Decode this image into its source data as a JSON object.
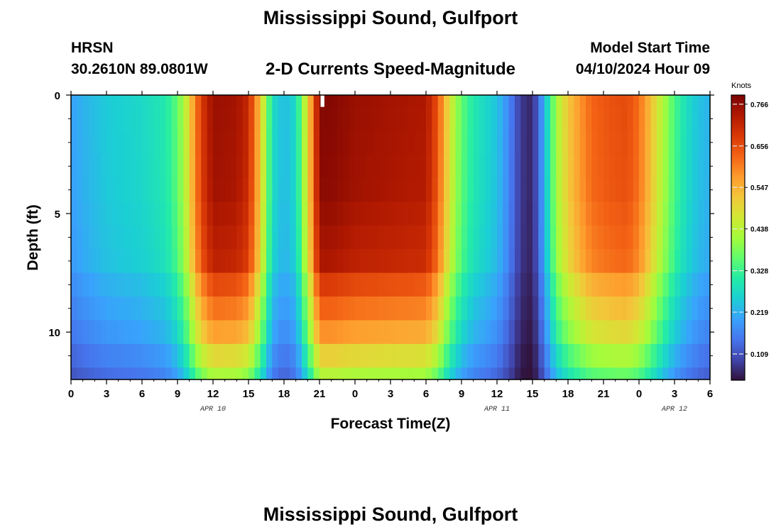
{
  "header": {
    "title": "Mississippi Sound, Gulfport",
    "station_code": "HRSN",
    "coordinates": "30.2610N  89.0801W",
    "subtitle": "2-D Currents Speed-Magnitude",
    "model_start_label": "Model Start Time",
    "model_start_value": "04/10/2024 Hour 09"
  },
  "footer": {
    "title_repeat": "Mississippi Sound, Gulfport"
  },
  "colors": {
    "stops": [
      "#30123b",
      "#4145ab",
      "#4675ed",
      "#39a2fc",
      "#1bcfd4",
      "#24eca6",
      "#61fc6c",
      "#a4fc3b",
      "#d1e834",
      "#f3c63a",
      "#fe9b2d",
      "#f36315",
      "#d93806",
      "#b11901",
      "#7a0402"
    ]
  },
  "chart_data": {
    "type": "heatmap",
    "title": "2-D Currents Speed-Magnitude",
    "xlabel": "Forecast Time(Z)",
    "ylabel": "Depth (ft)",
    "x_range_hours": [
      0,
      54
    ],
    "y_range_ft": [
      0,
      12
    ],
    "x_ticks": [
      {
        "h": 0,
        "label": "0"
      },
      {
        "h": 3,
        "label": "3"
      },
      {
        "h": 6,
        "label": "6"
      },
      {
        "h": 9,
        "label": "9"
      },
      {
        "h": 12,
        "label": "12"
      },
      {
        "h": 15,
        "label": "15"
      },
      {
        "h": 18,
        "label": "18"
      },
      {
        "h": 21,
        "label": "21"
      },
      {
        "h": 24,
        "label": "0"
      },
      {
        "h": 27,
        "label": "3"
      },
      {
        "h": 30,
        "label": "6"
      },
      {
        "h": 33,
        "label": "9"
      },
      {
        "h": 36,
        "label": "12"
      },
      {
        "h": 39,
        "label": "15"
      },
      {
        "h": 42,
        "label": "18"
      },
      {
        "h": 45,
        "label": "21"
      },
      {
        "h": 48,
        "label": "0"
      },
      {
        "h": 51,
        "label": "3"
      },
      {
        "h": 54,
        "label": "6"
      }
    ],
    "date_labels": [
      {
        "h": 12,
        "label": "APR 10"
      },
      {
        "h": 36,
        "label": "APR 11"
      },
      {
        "h": 51,
        "label": "APR 12"
      }
    ],
    "y_ticks": [
      {
        "ft": 0,
        "label": "0"
      },
      {
        "ft": 5,
        "label": "5"
      },
      {
        "ft": 10,
        "label": "10"
      }
    ],
    "colorbar": {
      "unit": "Knots",
      "min": 0.04,
      "max": 0.79,
      "ticks": [
        0.766,
        0.656,
        0.547,
        0.438,
        0.328,
        0.219,
        0.109
      ]
    },
    "time_step_hours": 0.5,
    "depth_levels_ft": [
      0,
      1,
      2,
      3,
      4,
      5,
      6,
      7,
      8,
      9,
      10,
      11,
      12
    ],
    "surface_speed_knots": [
      [
        0,
        0.2
      ],
      [
        1,
        0.22
      ],
      [
        3,
        0.25
      ],
      [
        6,
        0.27
      ],
      [
        8,
        0.3
      ],
      [
        9,
        0.36
      ],
      [
        9.7,
        0.45
      ],
      [
        10.3,
        0.56
      ],
      [
        11,
        0.68
      ],
      [
        12,
        0.76
      ],
      [
        14,
        0.75
      ],
      [
        15,
        0.71
      ],
      [
        15.7,
        0.58
      ],
      [
        16.3,
        0.45
      ],
      [
        17,
        0.28
      ],
      [
        18,
        0.23
      ],
      [
        19,
        0.27
      ],
      [
        19.6,
        0.4
      ],
      [
        20.2,
        0.55
      ],
      [
        21,
        0.78
      ],
      [
        22,
        0.78
      ],
      [
        24,
        0.76
      ],
      [
        27,
        0.75
      ],
      [
        30,
        0.74
      ],
      [
        31,
        0.65
      ],
      [
        31.6,
        0.54
      ],
      [
        32.3,
        0.44
      ],
      [
        33,
        0.36
      ],
      [
        34,
        0.3
      ],
      [
        36,
        0.24
      ],
      [
        37,
        0.17
      ],
      [
        38,
        0.08
      ],
      [
        39,
        0.06
      ],
      [
        39.6,
        0.15
      ],
      [
        40.3,
        0.28
      ],
      [
        41,
        0.42
      ],
      [
        42,
        0.52
      ],
      [
        43,
        0.58
      ],
      [
        44,
        0.63
      ],
      [
        45.5,
        0.65
      ],
      [
        47,
        0.66
      ],
      [
        48,
        0.62
      ],
      [
        49,
        0.53
      ],
      [
        50,
        0.43
      ],
      [
        51,
        0.34
      ],
      [
        52,
        0.28
      ],
      [
        53,
        0.24
      ],
      [
        54,
        0.22
      ]
    ],
    "depth_attenuation": [
      [
        0,
        1.0
      ],
      [
        4,
        0.99
      ],
      [
        7,
        0.95
      ],
      [
        8,
        0.87
      ],
      [
        10,
        0.75
      ],
      [
        11,
        0.65
      ],
      [
        12,
        0.56
      ]
    ],
    "missing_cells": [
      {
        "h_start": 21,
        "h_end": 21.5,
        "ft_start": 0,
        "ft_end": 0.5
      }
    ]
  }
}
